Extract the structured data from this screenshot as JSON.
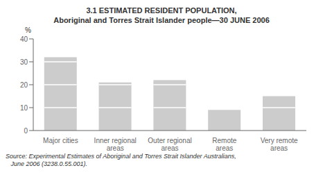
{
  "chart_data": {
    "type": "bar",
    "stacked": true,
    "title": "3.1   ESTIMATED RESIDENT POPULATION,\nAboriginal and Torres Strait Islander people—30 JUNE 2006",
    "categories": [
      "Major cities",
      "Inner regional\nareas",
      "Outer regional\nareas",
      "Remote\nareas",
      "Very remote\nareas"
    ],
    "values": [
      [
        10,
        10,
        10,
        2
      ],
      [
        10,
        10,
        1
      ],
      [
        10,
        10,
        2
      ],
      [
        9
      ],
      [
        10,
        5
      ]
    ],
    "color": "#cccccc",
    "y_label": "%",
    "ylim": [
      0,
      40
    ],
    "yticks": [
      0,
      10,
      20,
      30,
      40
    ],
    "annotations": [
      "Source: Experimental Estimates of Aboriginal and Torres Strait Islander Australians,",
      "   June 2006 (3238.0.55.001)."
    ],
    "grid": false
  }
}
